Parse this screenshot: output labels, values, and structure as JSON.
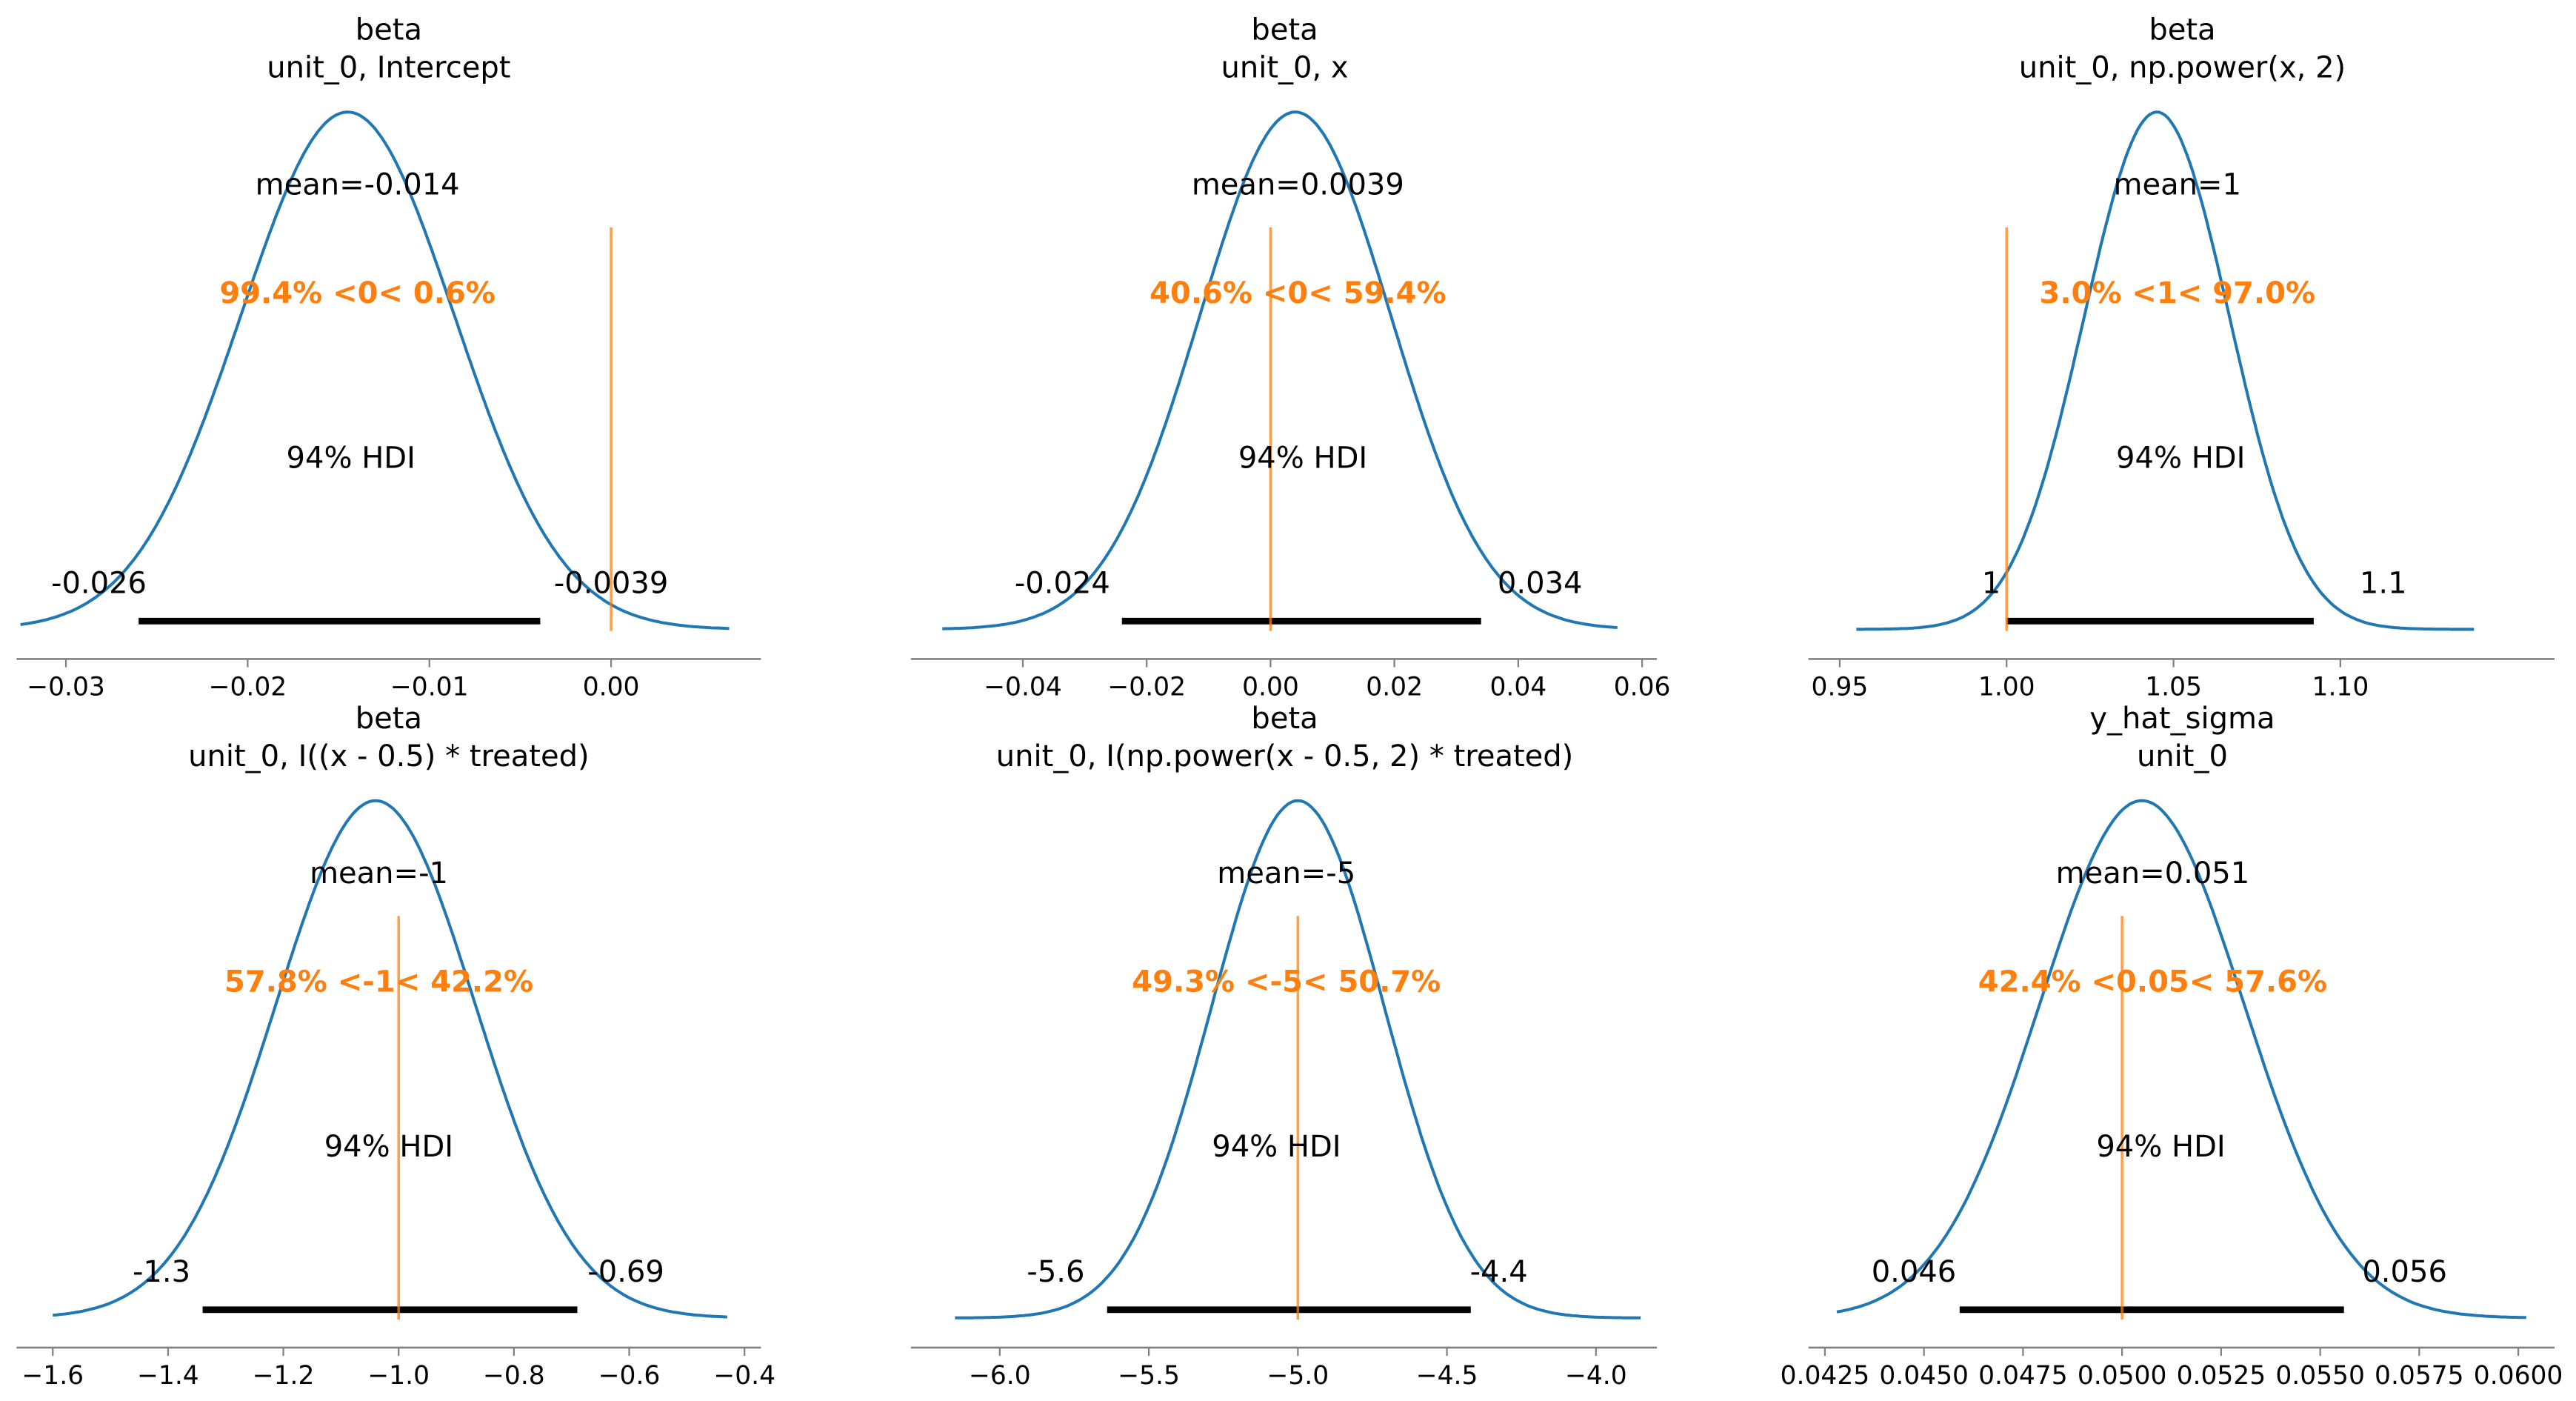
{
  "chart_data": [
    {
      "type": "line",
      "title": [
        "beta",
        "unit_0, Intercept"
      ],
      "mean_label": "mean=-0.014",
      "ref_label": "99.4% <0< 0.6%",
      "hdi_label": "94% HDI",
      "hdi": [
        -0.026,
        -0.0039
      ],
      "hdi_labels": [
        "-0.026",
        "-0.0039"
      ],
      "ref_value": 0,
      "mode": -0.0145,
      "kde_range": [
        -0.0325,
        0.0065
      ],
      "xticks": [
        -0.03,
        -0.02,
        -0.01,
        0.0
      ],
      "xtick_labels": [
        "−0.03",
        "−0.02",
        "−0.01",
        "0.00"
      ]
    },
    {
      "type": "line",
      "title": [
        "beta",
        "unit_0, x"
      ],
      "mean_label": "mean=0.0039",
      "ref_label": "40.6% <0< 59.4%",
      "hdi_label": "94% HDI",
      "hdi": [
        -0.024,
        0.034
      ],
      "hdi_labels": [
        "-0.024",
        "0.034"
      ],
      "ref_value": 0,
      "mode": 0.004,
      "kde_range": [
        -0.053,
        0.056
      ],
      "xticks": [
        -0.04,
        -0.02,
        0.0,
        0.02,
        0.04,
        0.06
      ],
      "xtick_labels": [
        "−0.04",
        "−0.02",
        "0.00",
        "0.02",
        "0.04",
        "0.06"
      ]
    },
    {
      "type": "line",
      "title": [
        "beta",
        "unit_0, np.power(x, 2)"
      ],
      "mean_label": "mean=1",
      "ref_label": "3.0% <1< 97.0%",
      "hdi_label": "94% HDI",
      "hdi": [
        1.0,
        1.092
      ],
      "hdi_labels": [
        "1",
        "1.1"
      ],
      "ref_value": 1,
      "mode": 1.045,
      "kde_range": [
        0.955,
        1.14
      ],
      "xticks": [
        0.95,
        1.0,
        1.05,
        1.1
      ],
      "xtick_labels": [
        "0.95",
        "1.00",
        "1.05",
        "1.10"
      ]
    },
    {
      "type": "line",
      "title": [
        "beta",
        "unit_0, I((x - 0.5) * treated)"
      ],
      "mean_label": "mean=-1",
      "ref_label": "57.8% <-1< 42.2%",
      "hdi_label": "94% HDI",
      "hdi": [
        -1.34,
        -0.69
      ],
      "hdi_labels": [
        "-1.3",
        "-0.69"
      ],
      "ref_value": -1,
      "mode": -1.04,
      "kde_range": [
        -1.6,
        -0.43
      ],
      "xticks": [
        -1.6,
        -1.4,
        -1.2,
        -1.0,
        -0.8,
        -0.6,
        -0.4
      ],
      "xtick_labels": [
        "−1.6",
        "−1.4",
        "−1.2",
        "−1.0",
        "−0.8",
        "−0.6",
        "−0.4"
      ]
    },
    {
      "type": "line",
      "title": [
        "beta",
        "unit_0, I(np.power(x - 0.5, 2) * treated)"
      ],
      "mean_label": "mean=-5",
      "ref_label": "49.3% <-5< 50.7%",
      "hdi_label": "94% HDI",
      "hdi": [
        -5.64,
        -4.42
      ],
      "hdi_labels": [
        "-5.6",
        "-4.4"
      ],
      "ref_value": -5,
      "mode": -5.0,
      "kde_range": [
        -6.15,
        -3.85
      ],
      "xticks": [
        -6.0,
        -5.5,
        -5.0,
        -4.5,
        -4.0
      ],
      "xtick_labels": [
        "−6.0",
        "−5.5",
        "−5.0",
        "−4.5",
        "−4.0"
      ]
    },
    {
      "type": "line",
      "title": [
        "y_hat_sigma",
        "unit_0"
      ],
      "mean_label": "mean=0.051",
      "ref_label": "42.4% <0.05< 57.6%",
      "hdi_label": "94% HDI",
      "hdi": [
        0.0459,
        0.0556
      ],
      "hdi_labels": [
        "0.046",
        "0.056"
      ],
      "ref_value": 0.05,
      "mode": 0.0505,
      "kde_range": [
        0.0428,
        0.0602
      ],
      "xticks": [
        0.0425,
        0.045,
        0.0475,
        0.05,
        0.0525,
        0.055,
        0.0575,
        0.06
      ],
      "xtick_labels": [
        "0.0425",
        "0.0450",
        "0.0475",
        "0.0500",
        "0.0525",
        "0.0550",
        "0.0575",
        "0.0600"
      ]
    }
  ],
  "colors": {
    "kde": "#1f77b4",
    "reference": "#ff7f0e",
    "hdi": "#000000",
    "axis": "#808080"
  }
}
